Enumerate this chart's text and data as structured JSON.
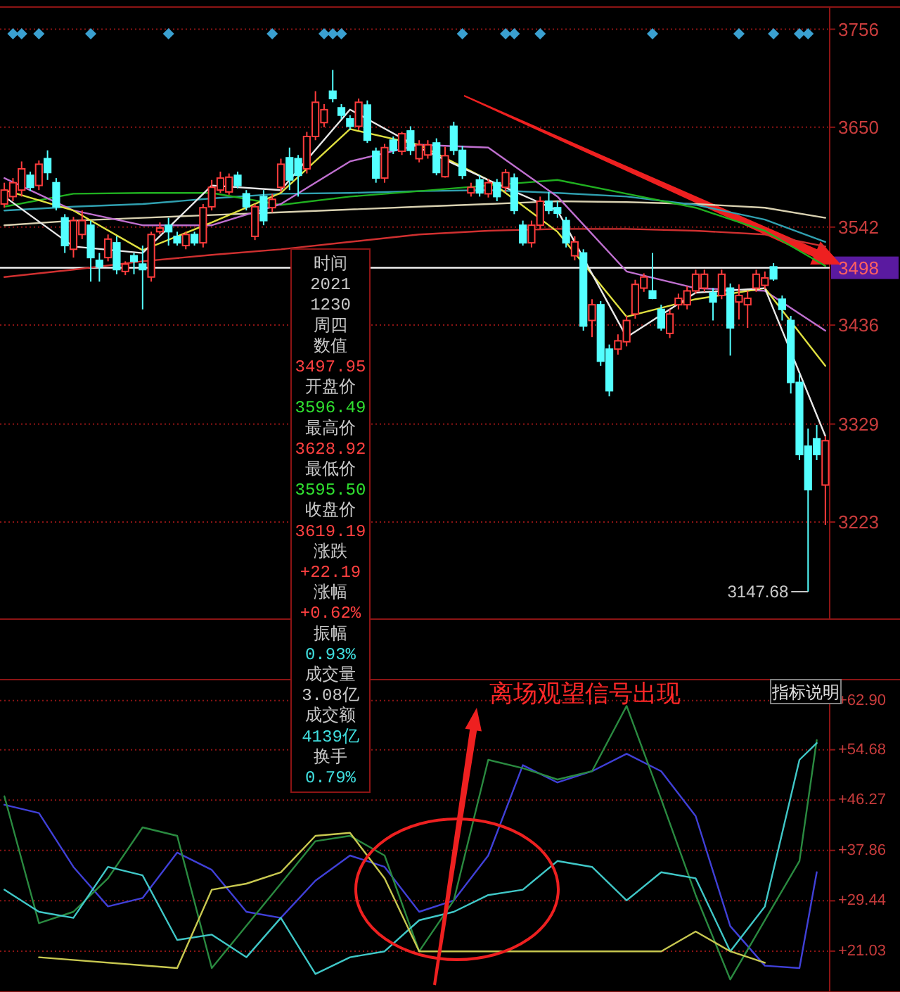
{
  "chart_data": [
    {
      "type": "candlestick",
      "grid": "y",
      "ylim": [
        3118,
        3780
      ],
      "yticks": [
        3223,
        3329,
        3436,
        3542,
        3650,
        3756
      ],
      "categories": [
        null,
        null,
        null,
        null,
        null,
        null,
        null,
        null,
        null,
        null,
        null,
        null,
        null,
        null,
        null,
        null,
        null,
        null,
        null,
        null,
        null,
        null,
        null,
        null,
        null,
        null,
        null,
        null,
        null,
        null,
        null,
        null,
        null,
        null,
        null,
        null,
        null,
        null,
        null,
        null,
        null,
        null,
        null,
        null,
        null,
        null,
        null,
        null,
        null,
        null,
        null,
        null,
        null,
        null,
        null,
        null,
        null,
        null,
        null,
        null,
        null,
        null,
        null,
        null,
        null,
        null,
        null,
        null,
        null,
        null,
        null,
        null,
        null,
        null,
        null,
        null,
        null,
        null,
        null,
        null,
        null,
        null,
        null,
        null,
        null,
        null,
        null,
        null,
        null,
        null,
        null,
        null,
        null,
        null,
        null,
        null
      ],
      "ohlc": [
        [
          3567,
          3590,
          3563,
          3582
        ],
        [
          3575,
          3595,
          3570,
          3590
        ],
        [
          3582,
          3613,
          3575,
          3605
        ],
        [
          3598,
          3602,
          3581,
          3585
        ],
        [
          3587,
          3614,
          3582,
          3610
        ],
        [
          3616,
          3625,
          3593,
          3601
        ],
        [
          3590,
          3595,
          3560,
          3564
        ],
        [
          3552,
          3556,
          3514,
          3522
        ],
        [
          3518,
          3553,
          3509,
          3549
        ],
        [
          3534,
          3560,
          3529,
          3549
        ],
        [
          3544,
          3549,
          3483,
          3509
        ],
        [
          3506,
          3514,
          3483,
          3499
        ],
        [
          3509,
          3534,
          3505,
          3529
        ],
        [
          3525,
          3532,
          3491,
          3496
        ],
        [
          3494,
          3505,
          3490,
          3502
        ],
        [
          3511,
          3514,
          3491,
          3505
        ],
        [
          3502,
          3522,
          3453,
          3496
        ],
        [
          3488,
          3537,
          3483,
          3534
        ],
        [
          3537,
          3547,
          3534,
          3541
        ],
        [
          3544,
          3552,
          3522,
          3537
        ],
        [
          3532,
          3537,
          3522,
          3525
        ],
        [
          3522,
          3537,
          3518,
          3534
        ],
        [
          3534,
          3537,
          3522,
          3525
        ],
        [
          3525,
          3567,
          3520,
          3563
        ],
        [
          3564,
          3593,
          3560,
          3585
        ],
        [
          3582,
          3602,
          3579,
          3595
        ],
        [
          3580,
          3600,
          3577,
          3596
        ],
        [
          3598,
          3602,
          3584,
          3587
        ],
        [
          3578,
          3582,
          3560,
          3564
        ],
        [
          3532,
          3567,
          3528,
          3564
        ],
        [
          3575,
          3582,
          3544,
          3549
        ],
        [
          3563,
          3578,
          3558,
          3572
        ],
        [
          3585,
          3616,
          3580,
          3610
        ],
        [
          3617,
          3628,
          3582,
          3593
        ],
        [
          3616,
          3620,
          3575,
          3598
        ],
        [
          3605,
          3645,
          3600,
          3640
        ],
        [
          3640,
          3689,
          3636,
          3677
        ],
        [
          3655,
          3675,
          3650,
          3669
        ],
        [
          3689,
          3712,
          3677,
          3681
        ],
        [
          3671,
          3675,
          3659,
          3663
        ],
        [
          3659,
          3663,
          3647,
          3651
        ],
        [
          3651,
          3681,
          3647,
          3677
        ],
        [
          3674,
          3679,
          3633,
          3636
        ],
        [
          3624,
          3628,
          3590,
          3595
        ],
        [
          3595,
          3632,
          3590,
          3628
        ],
        [
          3636,
          3640,
          3621,
          3625
        ],
        [
          3624,
          3645,
          3620,
          3643
        ],
        [
          3646,
          3651,
          3620,
          3625
        ],
        [
          3616,
          3636,
          3612,
          3631
        ],
        [
          3620,
          3636,
          3616,
          3631
        ],
        [
          3633,
          3638,
          3598,
          3601
        ],
        [
          3596.49,
          3628.92,
          3595.5,
          3619.19
        ],
        [
          3651,
          3656,
          3620,
          3625
        ],
        [
          3625,
          3630,
          3594,
          3598
        ],
        [
          3579,
          3590,
          3575,
          3585
        ],
        [
          3593,
          3598,
          3575,
          3579
        ],
        [
          3578,
          3594,
          3574,
          3590
        ],
        [
          3590,
          3594,
          3570,
          3575
        ],
        [
          3585,
          3605,
          3580,
          3601
        ],
        [
          3595,
          3600,
          3556,
          3560
        ],
        [
          3544,
          3549,
          3522,
          3525
        ],
        [
          3525,
          3549,
          3520,
          3544
        ],
        [
          3544,
          3575,
          3540,
          3570
        ],
        [
          3570,
          3580,
          3556,
          3560
        ],
        [
          3563,
          3570,
          3552,
          3557
        ],
        [
          3549,
          3553,
          3520,
          3525
        ],
        [
          3511,
          3532,
          3506,
          3526
        ],
        [
          3514,
          3518,
          3430,
          3435
        ],
        [
          3441,
          3464,
          3423,
          3458
        ],
        [
          3458,
          3462,
          3392,
          3397
        ],
        [
          3410,
          3415,
          3359,
          3365
        ],
        [
          3410,
          3426,
          3404,
          3419
        ],
        [
          3418,
          3446,
          3413,
          3441
        ],
        [
          3448,
          3485,
          3443,
          3480
        ],
        [
          3476,
          3492,
          3472,
          3488
        ],
        [
          3473,
          3514,
          3464,
          3465
        ],
        [
          3453,
          3458,
          3430,
          3433
        ],
        [
          3427,
          3453,
          3422,
          3448
        ],
        [
          3458,
          3470,
          3453,
          3465
        ],
        [
          3458,
          3478,
          3453,
          3473
        ],
        [
          3473,
          3496,
          3470,
          3491
        ],
        [
          3476,
          3496,
          3472,
          3491
        ],
        [
          3471,
          3476,
          3441,
          3461
        ],
        [
          3468,
          3496,
          3464,
          3491
        ],
        [
          3476,
          3481,
          3403,
          3433
        ],
        [
          3461,
          3480,
          3442,
          3468
        ],
        [
          3458,
          3473,
          3433,
          3465
        ],
        [
          3476,
          3496,
          3472,
          3491
        ],
        [
          3479,
          3494,
          3475,
          3487
        ],
        [
          3499,
          3503,
          3484,
          3486
        ],
        [
          3464,
          3468,
          3441,
          3453
        ],
        [
          3441,
          3446,
          3362,
          3374
        ],
        [
          3374,
          3384,
          3290,
          3296
        ],
        [
          3305,
          3324,
          3147.68,
          3258
        ],
        [
          3313,
          3328,
          3290,
          3296
        ],
        [
          3263,
          3316,
          3220,
          3311
        ]
      ],
      "series": [
        {
          "type": "line",
          "color": "#d03030",
          "values": [
            3488,
            null,
            null,
            null,
            null,
            null,
            null,
            null,
            3496,
            null,
            null,
            null,
            null,
            null,
            null,
            null,
            3505,
            null,
            null,
            null,
            null,
            null,
            null,
            null,
            3512,
            null,
            null,
            null,
            null,
            null,
            null,
            null,
            3518,
            null,
            null,
            null,
            null,
            null,
            null,
            null,
            3526,
            null,
            null,
            null,
            null,
            null,
            null,
            null,
            3534,
            null,
            null,
            null,
            null,
            null,
            null,
            null,
            3538,
            null,
            null,
            null,
            null,
            null,
            null,
            null,
            3540,
            null,
            null,
            null,
            null,
            null,
            null,
            null,
            3540,
            null,
            null,
            null,
            null,
            null,
            null,
            null,
            3538,
            null,
            null,
            null,
            null,
            null,
            null,
            null,
            3534,
            null,
            null,
            null,
            null,
            null,
            null,
            3521
          ]
        },
        {
          "type": "line",
          "color": "#d8d0b0",
          "values": [
            3544,
            null,
            null,
            null,
            null,
            null,
            null,
            null,
            3549,
            null,
            null,
            null,
            null,
            null,
            null,
            null,
            3552,
            null,
            null,
            null,
            null,
            null,
            null,
            null,
            3555,
            null,
            null,
            null,
            null,
            null,
            null,
            null,
            3558,
            null,
            null,
            null,
            null,
            null,
            null,
            null,
            3561,
            null,
            null,
            null,
            null,
            null,
            null,
            null,
            3564,
            null,
            null,
            null,
            null,
            null,
            null,
            null,
            3567,
            null,
            null,
            null,
            null,
            null,
            null,
            null,
            3570,
            null,
            null,
            null,
            null,
            null,
            null,
            null,
            3569,
            null,
            null,
            null,
            null,
            null,
            null,
            null,
            3567,
            null,
            null,
            null,
            null,
            null,
            null,
            null,
            3563,
            null,
            null,
            null,
            null,
            null,
            null,
            3552
          ]
        },
        {
          "type": "line",
          "color": "#30a0b0",
          "values": [
            3560,
            null,
            null,
            null,
            null,
            null,
            null,
            null,
            3564,
            null,
            null,
            null,
            null,
            null,
            null,
            null,
            3567,
            null,
            null,
            null,
            null,
            null,
            null,
            null,
            3573,
            null,
            null,
            null,
            null,
            null,
            null,
            null,
            3578,
            null,
            null,
            null,
            null,
            null,
            null,
            null,
            3579,
            null,
            null,
            null,
            null,
            null,
            null,
            null,
            3581,
            null,
            null,
            null,
            null,
            null,
            null,
            null,
            3582,
            null,
            null,
            null,
            null,
            null,
            null,
            null,
            3579,
            null,
            null,
            null,
            null,
            null,
            null,
            null,
            3575,
            null,
            null,
            null,
            null,
            null,
            null,
            null,
            3566,
            null,
            null,
            null,
            null,
            null,
            null,
            null,
            3550,
            null,
            null,
            null,
            null,
            null,
            null,
            3526
          ]
        },
        {
          "type": "line",
          "color": "#20b020",
          "values": [
            3564,
            null,
            null,
            null,
            null,
            null,
            null,
            null,
            3578,
            null,
            null,
            null,
            null,
            null,
            null,
            null,
            3579,
            null,
            null,
            null,
            null,
            null,
            null,
            null,
            3579,
            null,
            null,
            null,
            null,
            null,
            null,
            null,
            3566,
            null,
            null,
            null,
            null,
            null,
            null,
            null,
            3575,
            null,
            null,
            null,
            null,
            null,
            null,
            null,
            3581,
            null,
            null,
            null,
            null,
            null,
            null,
            null,
            3587,
            null,
            null,
            null,
            null,
            null,
            null,
            null,
            3593,
            null,
            null,
            null,
            null,
            null,
            null,
            null,
            3578,
            null,
            null,
            null,
            null,
            null,
            null,
            null,
            3563,
            null,
            null,
            null,
            null,
            null,
            null,
            null,
            3538,
            null,
            null,
            null,
            null,
            null,
            null,
            3500
          ]
        },
        {
          "type": "line",
          "color": "#c070d0",
          "values": [
            3595,
            null,
            null,
            null,
            null,
            null,
            null,
            null,
            3560,
            null,
            null,
            null,
            null,
            null,
            null,
            null,
            3544,
            null,
            null,
            null,
            null,
            null,
            null,
            null,
            3544,
            null,
            null,
            null,
            null,
            null,
            null,
            null,
            3567,
            null,
            null,
            null,
            null,
            null,
            null,
            null,
            3613,
            null,
            null,
            null,
            null,
            null,
            null,
            null,
            3631,
            null,
            null,
            null,
            null,
            null,
            null,
            null,
            3628,
            null,
            null,
            null,
            null,
            null,
            null,
            null,
            3575,
            null,
            null,
            null,
            null,
            null,
            null,
            null,
            3494,
            null,
            null,
            null,
            null,
            null,
            null,
            null,
            3476,
            null,
            null,
            null,
            null,
            null,
            null,
            null,
            3473,
            null,
            null,
            null,
            null,
            null,
            null,
            3430
          ]
        },
        {
          "type": "line",
          "color": "#e0e040",
          "values": [
            3582,
            null,
            null,
            null,
            null,
            null,
            null,
            null,
            3560,
            null,
            null,
            null,
            null,
            null,
            null,
            null,
            3517,
            null,
            null,
            null,
            null,
            null,
            null,
            null,
            3547,
            null,
            null,
            null,
            null,
            null,
            null,
            null,
            3579,
            null,
            null,
            null,
            null,
            null,
            null,
            null,
            3648,
            null,
            null,
            null,
            null,
            null,
            null,
            null,
            3631,
            null,
            null,
            null,
            null,
            null,
            null,
            null,
            3593,
            null,
            null,
            null,
            null,
            null,
            null,
            null,
            3537,
            null,
            null,
            null,
            null,
            null,
            null,
            null,
            3445,
            null,
            null,
            null,
            null,
            null,
            null,
            null,
            3464,
            null,
            null,
            null,
            null,
            null,
            null,
            null,
            3476,
            null,
            null,
            null,
            null,
            null,
            null,
            3392
          ]
        },
        {
          "type": "line",
          "color": "#e8e8e8",
          "values": [
            3575,
            null,
            null,
            null,
            null,
            null,
            null,
            null,
            3521,
            null,
            null,
            null,
            null,
            null,
            null,
            null,
            3514,
            null,
            null,
            null,
            null,
            null,
            null,
            null,
            3587,
            null,
            null,
            null,
            null,
            null,
            null,
            null,
            3582,
            null,
            null,
            null,
            null,
            null,
            null,
            null,
            3669,
            null,
            null,
            null,
            null,
            null,
            null,
            null,
            3628,
            null,
            null,
            null,
            null,
            null,
            null,
            null,
            3593,
            null,
            null,
            null,
            null,
            null,
            null,
            null,
            3560,
            null,
            null,
            null,
            null,
            null,
            null,
            null,
            3423,
            null,
            null,
            null,
            null,
            null,
            null,
            null,
            3471,
            null,
            null,
            null,
            null,
            null,
            null,
            null,
            3476,
            null,
            null,
            null,
            null,
            null,
            null,
            3316
          ]
        },
        {
          "type": "scatter",
          "marker": "diamond",
          "color": "#3aa0d0",
          "values": [
            null,
            3751,
            3751,
            null,
            3751,
            null,
            null,
            null,
            null,
            null,
            3751,
            null,
            null,
            null,
            null,
            null,
            null,
            null,
            null,
            3751,
            null,
            null,
            null,
            null,
            null,
            null,
            null,
            null,
            null,
            null,
            null,
            3751,
            null,
            null,
            null,
            null,
            null,
            3751,
            3751,
            3751,
            null,
            null,
            null,
            null,
            null,
            null,
            null,
            null,
            null,
            null,
            null,
            null,
            null,
            3751,
            null,
            null,
            null,
            null,
            3751,
            3751,
            null,
            null,
            3751,
            null,
            null,
            null,
            null,
            null,
            null,
            null,
            null,
            null,
            null,
            null,
            null,
            3751,
            null,
            null,
            null,
            null,
            null,
            null,
            null,
            null,
            null,
            3751,
            null,
            null,
            null,
            3751,
            null,
            null,
            3751,
            3751,
            null,
            null
          ]
        }
      ],
      "ref_lines": [
        {
          "axis": "y",
          "value": 3498,
          "label": "3498",
          "color": "#ffffff"
        }
      ],
      "annotations": [
        "3147.68",
        "时间",
        "2021",
        "1230",
        "周四",
        "数值",
        "3497.95",
        "开盘价",
        "3596.49",
        "最高价",
        "3628.92",
        "最低价",
        "3595.50",
        "收盘价",
        "3619.19",
        "涨跌",
        "+22.19",
        "涨幅",
        "+0.62%",
        "振幅",
        "0.93%",
        "成交量",
        "3.08亿",
        "成交额",
        "4139亿",
        "换手",
        "0.79%"
      ]
    },
    {
      "type": "line",
      "grid": "y",
      "ylim": [
        14.2,
        66.4
      ],
      "yticks": [
        {
          "value": 21.03,
          "label": "+21.03"
        },
        {
          "value": 29.44,
          "label": "+29.44"
        },
        {
          "value": 37.86,
          "label": "+37.86"
        },
        {
          "value": 46.27,
          "label": "+46.27"
        },
        {
          "value": 54.68,
          "label": "+54.68"
        },
        {
          "value": 62.9,
          "label": "+62.90"
        }
      ],
      "categories": [
        null,
        null,
        null,
        null,
        null,
        null,
        null,
        null,
        null,
        null,
        null,
        null,
        null,
        null,
        null,
        null,
        null,
        null,
        null,
        null,
        null,
        null,
        null,
        null,
        null,
        null,
        null,
        null,
        null,
        null,
        null,
        null,
        null,
        null,
        null,
        null,
        null,
        null,
        null,
        null,
        null,
        null,
        null,
        null,
        null,
        null,
        null,
        null,
        null,
        null,
        null,
        null,
        null,
        null,
        null,
        null,
        null,
        null,
        null,
        null,
        null,
        null,
        null,
        null,
        null,
        null,
        null,
        null,
        null,
        null,
        null,
        null,
        null,
        null,
        null,
        null,
        null,
        null,
        null,
        null,
        null,
        null,
        null,
        null,
        null,
        null,
        null,
        null,
        null,
        null,
        null,
        null,
        null,
        null,
        null,
        null
      ],
      "series": [
        {
          "color": "#4040d8",
          "values": [
            45.5,
            null,
            null,
            null,
            44.1,
            null,
            null,
            null,
            35.1,
            null,
            null,
            null,
            28.5,
            null,
            null,
            null,
            29.9,
            null,
            null,
            null,
            37.5,
            null,
            null,
            null,
            34.6,
            null,
            null,
            null,
            27.6,
            null,
            null,
            null,
            26.6,
            null,
            null,
            null,
            32.8,
            null,
            null,
            null,
            37.0,
            null,
            null,
            null,
            35.1,
            null,
            null,
            null,
            27.6,
            null,
            null,
            null,
            29.5,
            null,
            null,
            null,
            37.0,
            null,
            null,
            null,
            52.1,
            null,
            null,
            null,
            49.2,
            null,
            null,
            null,
            51.1,
            null,
            null,
            null,
            54.0,
            null,
            null,
            null,
            51.1,
            null,
            null,
            null,
            43.6,
            null,
            null,
            null,
            25.2,
            null,
            null,
            null,
            18.6,
            null,
            null,
            null,
            18.2,
            null,
            34.2,
            null
          ]
        },
        {
          "color": "#2a8a40",
          "values": [
            46.9,
            null,
            null,
            null,
            25.7,
            null,
            null,
            null,
            27.6,
            null,
            null,
            null,
            33.2,
            null,
            null,
            null,
            41.7,
            null,
            null,
            null,
            40.3,
            null,
            null,
            null,
            18.2,
            null,
            null,
            null,
            null,
            null,
            null,
            null,
            32.3,
            null,
            null,
            null,
            39.4,
            null,
            null,
            null,
            40.3,
            null,
            null,
            null,
            37.0,
            null,
            null,
            null,
            21.0,
            null,
            null,
            null,
            29.5,
            null,
            null,
            null,
            53.0,
            null,
            null,
            null,
            51.6,
            null,
            null,
            null,
            49.7,
            null,
            null,
            null,
            51.1,
            null,
            null,
            null,
            62.0,
            null,
            null,
            null,
            46.4,
            null,
            null,
            null,
            30.4,
            null,
            null,
            null,
            16.3,
            null,
            null,
            null,
            null,
            null,
            null,
            null,
            36.1,
            null,
            56.3,
            null
          ]
        },
        {
          "color": "#40c8c8",
          "values": [
            31.3,
            null,
            null,
            null,
            27.6,
            null,
            null,
            null,
            26.6,
            null,
            null,
            null,
            35.1,
            null,
            null,
            null,
            33.7,
            null,
            null,
            null,
            22.9,
            null,
            null,
            null,
            23.8,
            null,
            null,
            null,
            20.0,
            null,
            null,
            null,
            26.6,
            null,
            null,
            null,
            17.2,
            null,
            null,
            null,
            20.0,
            null,
            null,
            null,
            21.0,
            null,
            null,
            null,
            26.2,
            null,
            null,
            null,
            27.6,
            null,
            null,
            null,
            30.4,
            null,
            null,
            null,
            31.3,
            null,
            null,
            null,
            36.1,
            null,
            null,
            null,
            35.1,
            null,
            null,
            null,
            29.5,
            null,
            null,
            null,
            34.2,
            null,
            null,
            null,
            33.2,
            null,
            null,
            null,
            21.0,
            null,
            null,
            null,
            28.5,
            null,
            null,
            null,
            53.0,
            null,
            55.8,
            null
          ]
        },
        {
          "color": "#c8c850",
          "values": [
            null,
            null,
            null,
            null,
            20.0,
            null,
            null,
            null,
            null,
            null,
            null,
            null,
            null,
            null,
            null,
            null,
            null,
            null,
            null,
            null,
            18.2,
            null,
            null,
            null,
            31.3,
            null,
            null,
            null,
            32.3,
            null,
            null,
            null,
            34.2,
            null,
            null,
            null,
            40.3,
            null,
            null,
            null,
            40.8,
            null,
            null,
            null,
            33.2,
            null,
            null,
            null,
            21.0,
            null,
            null,
            null,
            null,
            null,
            null,
            null,
            null,
            null,
            null,
            null,
            null,
            null,
            null,
            null,
            null,
            null,
            null,
            null,
            null,
            null,
            null,
            null,
            null,
            null,
            null,
            null,
            21.0,
            null,
            null,
            null,
            24.3,
            null,
            null,
            null,
            21.0,
            null,
            null,
            null,
            19.1,
            null,
            null,
            null,
            null,
            null,
            null,
            null
          ]
        }
      ],
      "annotations": [
        "离场观望信号出现",
        "指标说明"
      ]
    }
  ]
}
